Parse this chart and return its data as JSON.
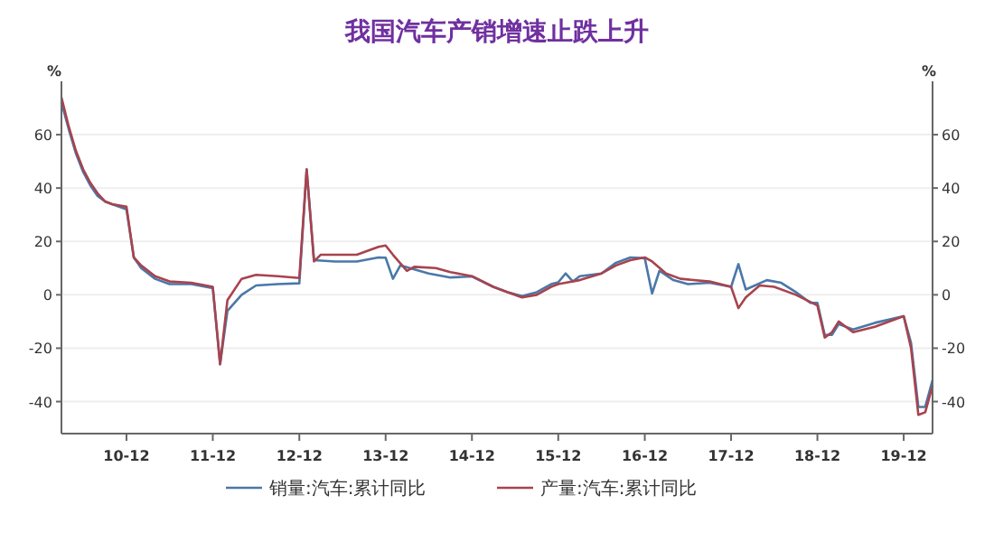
{
  "chart_data": {
    "type": "line",
    "title": "我国汽车产销增速止跌上升",
    "ylabel": "%",
    "y2label": "%",
    "xlim": [
      "2010-03",
      "2020-04"
    ],
    "xticks": [
      {
        "value": "2010-12",
        "label": "10-12"
      },
      {
        "value": "2011-12",
        "label": "11-12"
      },
      {
        "value": "2012-12",
        "label": "12-12"
      },
      {
        "value": "2013-12",
        "label": "13-12"
      },
      {
        "value": "2014-12",
        "label": "14-12"
      },
      {
        "value": "2015-12",
        "label": "15-12"
      },
      {
        "value": "2016-12",
        "label": "16-12"
      },
      {
        "value": "2017-12",
        "label": "17-12"
      },
      {
        "value": "2018-12",
        "label": "18-12"
      },
      {
        "value": "2019-12",
        "label": "19-12"
      }
    ],
    "ylim": [
      -52,
      80
    ],
    "yticks": [
      -40,
      -20,
      0,
      20,
      40,
      60
    ],
    "y2lim": [
      -52,
      80
    ],
    "y2ticks": [
      -40,
      -20,
      0,
      20,
      40,
      60
    ],
    "grid": "y",
    "legend": "bottom",
    "marker": "none",
    "line_style": "solid",
    "series": [
      {
        "name": "销量:汽车:累计同比",
        "color": "#4a78a8",
        "x": [
          "2010-03",
          "2010-04",
          "2010-05",
          "2010-06",
          "2010-07",
          "2010-08",
          "2010-09",
          "2010-10",
          "2010-12",
          "2011-01",
          "2011-02",
          "2011-04",
          "2011-06",
          "2011-09",
          "2011-12",
          "2012-01",
          "2012-02",
          "2012-04",
          "2012-06",
          "2012-09",
          "2012-12",
          "2013-01",
          "2013-02",
          "2013-05",
          "2013-08",
          "2013-11",
          "2013-12",
          "2014-01",
          "2014-02",
          "2014-06",
          "2014-09",
          "2014-12",
          "2015-03",
          "2015-05",
          "2015-07",
          "2015-09",
          "2015-11",
          "2015-12",
          "2016-01",
          "2016-02",
          "2016-03",
          "2016-06",
          "2016-08",
          "2016-10",
          "2016-12",
          "2017-01",
          "2017-02",
          "2017-04",
          "2017-06",
          "2017-09",
          "2017-12",
          "2018-01",
          "2018-02",
          "2018-05",
          "2018-07",
          "2018-09",
          "2018-11",
          "2018-12",
          "2019-01",
          "2019-02",
          "2019-03",
          "2019-05",
          "2019-08",
          "2019-12",
          "2020-01",
          "2020-02",
          "2020-03",
          "2020-04"
        ],
        "values": [
          72,
          62,
          53,
          46,
          41,
          37,
          35,
          34,
          32,
          14,
          10,
          6,
          4,
          4,
          2.5,
          -26,
          -6,
          0,
          3.5,
          4,
          4.3,
          47,
          13,
          12.5,
          12.5,
          14,
          13.9,
          6,
          11,
          8,
          6.5,
          6.9,
          3,
          1,
          -0.5,
          1,
          4,
          4.7,
          8,
          5,
          7,
          8,
          12,
          14,
          13.7,
          0.5,
          9,
          5.5,
          4,
          4.5,
          3,
          11.5,
          2,
          5.5,
          4.5,
          1,
          -3,
          -3,
          -15,
          -15,
          -11,
          -13,
          -10.5,
          -8,
          -18,
          -42,
          -42,
          -32
        ]
      },
      {
        "name": "产量:汽车:累计同比",
        "color": "#a8434e",
        "x": [
          "2010-03",
          "2010-04",
          "2010-05",
          "2010-06",
          "2010-07",
          "2010-08",
          "2010-09",
          "2010-10",
          "2010-12",
          "2011-01",
          "2011-02",
          "2011-04",
          "2011-06",
          "2011-09",
          "2011-12",
          "2012-01",
          "2012-02",
          "2012-04",
          "2012-06",
          "2012-09",
          "2012-12",
          "2013-01",
          "2013-02",
          "2013-03",
          "2013-08",
          "2013-11",
          "2013-12",
          "2014-01",
          "2014-03",
          "2014-04",
          "2014-07",
          "2014-09",
          "2014-12",
          "2015-03",
          "2015-05",
          "2015-07",
          "2015-09",
          "2015-11",
          "2015-12",
          "2016-01",
          "2016-03",
          "2016-06",
          "2016-08",
          "2016-10",
          "2016-12",
          "2017-01",
          "2017-03",
          "2017-05",
          "2017-09",
          "2017-12",
          "2018-01",
          "2018-02",
          "2018-04",
          "2018-06",
          "2018-09",
          "2018-12",
          "2019-01",
          "2019-02",
          "2019-03",
          "2019-05",
          "2019-08",
          "2019-12",
          "2020-01",
          "2020-02",
          "2020-03",
          "2020-04"
        ],
        "values": [
          74,
          63,
          54,
          47,
          42,
          38,
          35,
          34,
          33,
          14,
          11,
          7,
          5,
          4.5,
          3,
          -26,
          -2,
          6,
          7.5,
          7,
          6.3,
          47,
          12.5,
          15,
          15,
          18,
          18.5,
          15,
          9,
          10.5,
          10,
          8.5,
          7,
          3,
          1,
          -1,
          0,
          3,
          4,
          4.5,
          5.5,
          8,
          11,
          13,
          14,
          12.5,
          8,
          6,
          5,
          3,
          -5,
          -1,
          3.5,
          3,
          0,
          -4,
          -16,
          -14,
          -10,
          -14,
          -12,
          -8,
          -20,
          -45,
          -44,
          -34
        ]
      }
    ]
  }
}
